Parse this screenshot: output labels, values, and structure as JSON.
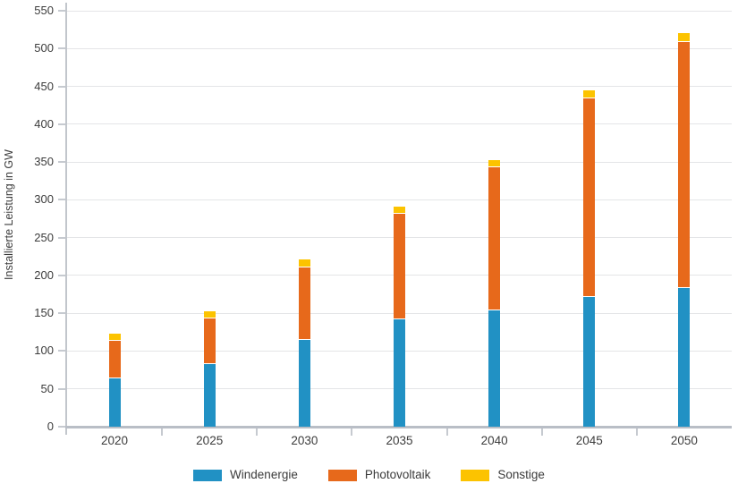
{
  "chart_data": {
    "type": "bar",
    "stacked": true,
    "title": "",
    "xlabel": "",
    "ylabel": "Installierte Leistung in GW",
    "categories": [
      "2020",
      "2025",
      "2030",
      "2035",
      "2040",
      "2045",
      "2050"
    ],
    "series": [
      {
        "name": "Windenergie",
        "color": "#2191c4",
        "values": [
          64,
          83,
          115,
          142,
          154,
          171,
          183
        ]
      },
      {
        "name": "Photovoltaik",
        "color": "#e7691b",
        "values": [
          49,
          60,
          96,
          139,
          189,
          263,
          326
        ]
      },
      {
        "name": "Sonstige",
        "color": "#fcc300",
        "values": [
          10,
          10,
          10,
          10,
          10,
          11,
          11
        ]
      }
    ],
    "totals": [
      123,
      153,
      221,
      291,
      353,
      445,
      520
    ],
    "ylim": [
      0,
      550
    ],
    "ytick_step": 50,
    "grid": true,
    "legend_position": "bottom",
    "axis_colors": {
      "grid": "#e4e5e7",
      "tick": "#c6cad0",
      "axis_line": "#c2c6cc",
      "baseline": "#b9bec6",
      "text": "#3c3c3c"
    }
  }
}
